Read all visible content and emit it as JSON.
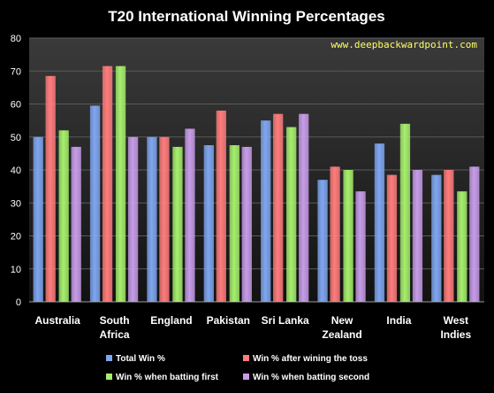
{
  "colors": {
    "background": "#000000",
    "plot_top": "#3a3a3a",
    "plot_bottom": "#121212",
    "grid": "#5a5a5a",
    "watermark": "#ffff66"
  },
  "watermark": "www.deepbackwardpoint.com",
  "chart_data": {
    "type": "bar",
    "title": "T20 International Winning Percentages",
    "xlabel": "",
    "ylabel": "",
    "ylim": [
      0,
      80
    ],
    "yticks": [
      "0",
      "10",
      "20",
      "30",
      "40",
      "50",
      "60",
      "70",
      "80"
    ],
    "grid": true,
    "legend_position": "bottom",
    "categories": [
      [
        "Australia"
      ],
      [
        "South",
        "Africa"
      ],
      [
        "England"
      ],
      [
        "Pakistan"
      ],
      [
        "Sri Lanka"
      ],
      [
        "New",
        "Zealand"
      ],
      [
        "India"
      ],
      [
        "West",
        "Indies"
      ]
    ],
    "series": [
      {
        "name": "Total Win %",
        "color": "#7fa6f0",
        "values": [
          50,
          59.5,
          50,
          47.5,
          55,
          37,
          48,
          38.5
        ]
      },
      {
        "name": "Win % after wining the toss",
        "color": "#ff7c7c",
        "values": [
          68.5,
          71.5,
          50,
          58,
          57,
          41,
          38.5,
          40
        ]
      },
      {
        "name": "Win % when batting first",
        "color": "#a6ef6c",
        "values": [
          52,
          71.5,
          47,
          47.5,
          53,
          40,
          54,
          33.5
        ]
      },
      {
        "name": "Win % when batting second",
        "color": "#c79ce8",
        "values": [
          47,
          50,
          52.5,
          47,
          57,
          33.5,
          40,
          41
        ]
      }
    ]
  }
}
